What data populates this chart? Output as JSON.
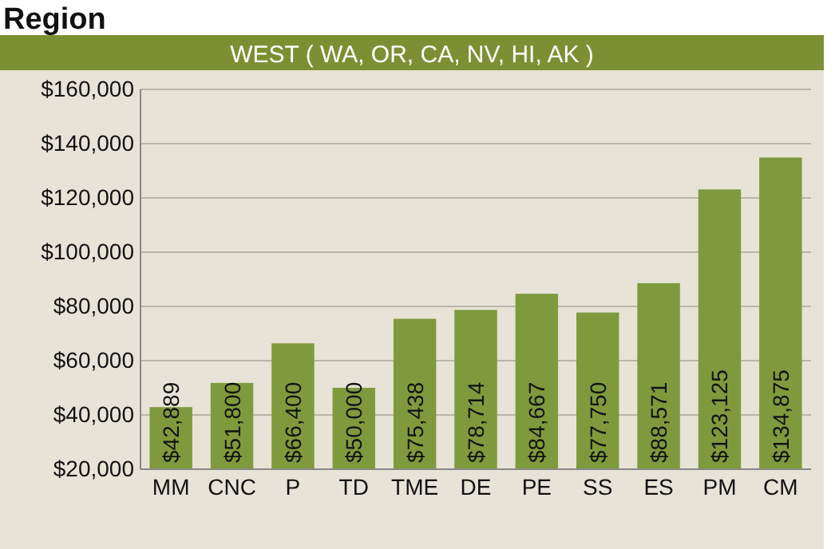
{
  "chart_data": {
    "type": "bar",
    "title": "Region",
    "subtitle": "WEST ( WA, OR, CA, NV, HI, AK )",
    "categories": [
      "MM",
      "CNC",
      "P",
      "TD",
      "TME",
      "DE",
      "PE",
      "SS",
      "ES",
      "PM",
      "CM"
    ],
    "values": [
      42889,
      51800,
      66400,
      50000,
      75438,
      78714,
      84667,
      77750,
      88571,
      123125,
      134875
    ],
    "value_labels": [
      "$42,889",
      "$51,800",
      "$66,400",
      "$50,000",
      "$75,438",
      "$78,714",
      "$84,667",
      "$77,750",
      "$88,571",
      "$123,125",
      "$134,875"
    ],
    "color": "#7f9a3c",
    "ylim": [
      20000,
      160000
    ],
    "yticks": [
      {
        "value": 20000,
        "label": "$20,000"
      },
      {
        "value": 40000,
        "label": "$40,000"
      },
      {
        "value": 60000,
        "label": "$60,000"
      },
      {
        "value": 80000,
        "label": "$80,000"
      },
      {
        "value": 100000,
        "label": "$100,000"
      },
      {
        "value": 120000,
        "label": "$120,000"
      },
      {
        "value": 140000,
        "label": "$140,000"
      },
      {
        "value": 160000,
        "label": "$160,000"
      }
    ],
    "grid": "y"
  }
}
